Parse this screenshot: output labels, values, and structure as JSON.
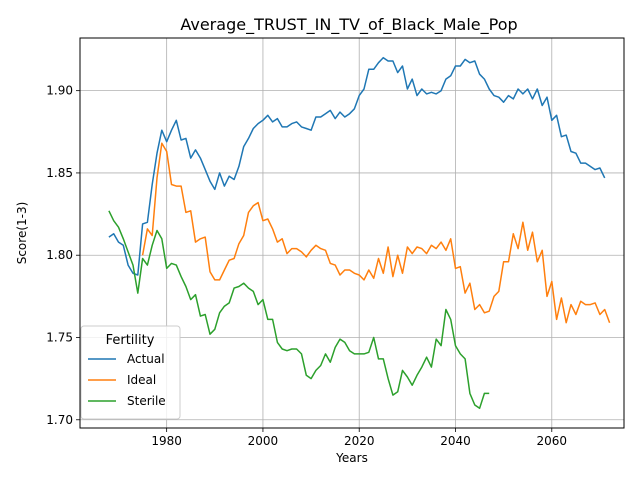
{
  "chart_data": {
    "type": "line",
    "title": "Average_TRUST_IN_TV_of_Black_Male_Pop",
    "xlabel": "Years",
    "ylabel": "Score(1-3)",
    "xlim": [
      1962,
      2075
    ],
    "ylim": [
      1.695,
      1.932
    ],
    "xticks": [
      1980,
      2000,
      2020,
      2040,
      2060
    ],
    "yticks": [
      1.7,
      1.75,
      1.8,
      1.85,
      1.9
    ],
    "grid": true,
    "legend": {
      "title": "Fertility",
      "placement": "lower-left"
    },
    "series": [
      {
        "name": "Actual",
        "color": "#1f77b4",
        "points": [
          [
            1968,
            1.811
          ],
          [
            1969,
            1.813
          ],
          [
            1970,
            1.808
          ],
          [
            1971,
            1.806
          ],
          [
            1972,
            1.794
          ],
          [
            1973,
            1.789
          ],
          [
            1974,
            1.788
          ],
          [
            1975,
            1.819
          ],
          [
            1976,
            1.82
          ],
          [
            1977,
            1.843
          ],
          [
            1978,
            1.862
          ],
          [
            1979,
            1.876
          ],
          [
            1980,
            1.869
          ],
          [
            1981,
            1.876
          ],
          [
            1982,
            1.882
          ],
          [
            1983,
            1.87
          ],
          [
            1984,
            1.871
          ],
          [
            1985,
            1.859
          ],
          [
            1986,
            1.864
          ],
          [
            1987,
            1.859
          ],
          [
            1988,
            1.852
          ],
          [
            1989,
            1.845
          ],
          [
            1990,
            1.84
          ],
          [
            1991,
            1.85
          ],
          [
            1992,
            1.842
          ],
          [
            1993,
            1.848
          ],
          [
            1994,
            1.846
          ],
          [
            1995,
            1.854
          ],
          [
            1996,
            1.866
          ],
          [
            1997,
            1.871
          ],
          [
            1998,
            1.877
          ],
          [
            1999,
            1.88
          ],
          [
            2000,
            1.882
          ],
          [
            2001,
            1.885
          ],
          [
            2002,
            1.881
          ],
          [
            2003,
            1.883
          ],
          [
            2004,
            1.878
          ],
          [
            2005,
            1.878
          ],
          [
            2006,
            1.88
          ],
          [
            2007,
            1.881
          ],
          [
            2008,
            1.878
          ],
          [
            2009,
            1.877
          ],
          [
            2010,
            1.876
          ],
          [
            2011,
            1.884
          ],
          [
            2012,
            1.884
          ],
          [
            2013,
            1.886
          ],
          [
            2014,
            1.888
          ],
          [
            2015,
            1.883
          ],
          [
            2016,
            1.887
          ],
          [
            2017,
            1.884
          ],
          [
            2018,
            1.886
          ],
          [
            2019,
            1.889
          ],
          [
            2020,
            1.897
          ],
          [
            2021,
            1.901
          ],
          [
            2022,
            1.913
          ],
          [
            2023,
            1.913
          ],
          [
            2024,
            1.917
          ],
          [
            2025,
            1.92
          ],
          [
            2026,
            1.918
          ],
          [
            2027,
            1.918
          ],
          [
            2028,
            1.911
          ],
          [
            2029,
            1.915
          ],
          [
            2030,
            1.901
          ],
          [
            2031,
            1.907
          ],
          [
            2032,
            1.897
          ],
          [
            2033,
            1.901
          ],
          [
            2034,
            1.898
          ],
          [
            2035,
            1.899
          ],
          [
            2036,
            1.898
          ],
          [
            2037,
            1.9
          ],
          [
            2038,
            1.907
          ],
          [
            2039,
            1.909
          ],
          [
            2040,
            1.915
          ],
          [
            2041,
            1.915
          ],
          [
            2042,
            1.919
          ],
          [
            2043,
            1.917
          ],
          [
            2044,
            1.918
          ],
          [
            2045,
            1.91
          ],
          [
            2046,
            1.907
          ],
          [
            2047,
            1.901
          ],
          [
            2048,
            1.897
          ],
          [
            2049,
            1.896
          ],
          [
            2050,
            1.893
          ],
          [
            2051,
            1.897
          ],
          [
            2052,
            1.895
          ],
          [
            2053,
            1.901
          ],
          [
            2054,
            1.898
          ],
          [
            2055,
            1.901
          ],
          [
            2056,
            1.895
          ],
          [
            2057,
            1.901
          ],
          [
            2058,
            1.891
          ],
          [
            2059,
            1.896
          ],
          [
            2060,
            1.882
          ],
          [
            2061,
            1.885
          ],
          [
            2062,
            1.872
          ],
          [
            2063,
            1.873
          ],
          [
            2064,
            1.863
          ],
          [
            2065,
            1.862
          ],
          [
            2066,
            1.856
          ],
          [
            2067,
            1.856
          ],
          [
            2068,
            1.854
          ],
          [
            2069,
            1.852
          ],
          [
            2070,
            1.853
          ],
          [
            2071,
            1.847
          ]
        ]
      },
      {
        "name": "Ideal",
        "color": "#ff7f0e",
        "points": [
          [
            1975,
            1.8
          ],
          [
            1976,
            1.816
          ],
          [
            1977,
            1.812
          ],
          [
            1978,
            1.847
          ],
          [
            1979,
            1.868
          ],
          [
            1980,
            1.863
          ],
          [
            1981,
            1.843
          ],
          [
            1982,
            1.842
          ],
          [
            1983,
            1.842
          ],
          [
            1984,
            1.826
          ],
          [
            1985,
            1.827
          ],
          [
            1986,
            1.808
          ],
          [
            1987,
            1.81
          ],
          [
            1988,
            1.811
          ],
          [
            1989,
            1.79
          ],
          [
            1990,
            1.785
          ],
          [
            1991,
            1.785
          ],
          [
            1992,
            1.791
          ],
          [
            1993,
            1.797
          ],
          [
            1994,
            1.798
          ],
          [
            1995,
            1.807
          ],
          [
            1996,
            1.812
          ],
          [
            1997,
            1.826
          ],
          [
            1998,
            1.83
          ],
          [
            1999,
            1.832
          ],
          [
            2000,
            1.821
          ],
          [
            2001,
            1.822
          ],
          [
            2002,
            1.816
          ],
          [
            2003,
            1.808
          ],
          [
            2004,
            1.81
          ],
          [
            2005,
            1.801
          ],
          [
            2006,
            1.804
          ],
          [
            2007,
            1.804
          ],
          [
            2008,
            1.802
          ],
          [
            2009,
            1.799
          ],
          [
            2010,
            1.803
          ],
          [
            2011,
            1.806
          ],
          [
            2012,
            1.804
          ],
          [
            2013,
            1.803
          ],
          [
            2014,
            1.795
          ],
          [
            2015,
            1.794
          ],
          [
            2016,
            1.788
          ],
          [
            2017,
            1.791
          ],
          [
            2018,
            1.791
          ],
          [
            2019,
            1.789
          ],
          [
            2020,
            1.788
          ],
          [
            2021,
            1.785
          ],
          [
            2022,
            1.791
          ],
          [
            2023,
            1.786
          ],
          [
            2024,
            1.798
          ],
          [
            2025,
            1.789
          ],
          [
            2026,
            1.805
          ],
          [
            2027,
            1.787
          ],
          [
            2028,
            1.8
          ],
          [
            2029,
            1.789
          ],
          [
            2030,
            1.805
          ],
          [
            2031,
            1.801
          ],
          [
            2032,
            1.805
          ],
          [
            2033,
            1.804
          ],
          [
            2034,
            1.801
          ],
          [
            2035,
            1.806
          ],
          [
            2036,
            1.804
          ],
          [
            2037,
            1.808
          ],
          [
            2038,
            1.803
          ],
          [
            2039,
            1.81
          ],
          [
            2040,
            1.792
          ],
          [
            2041,
            1.793
          ],
          [
            2042,
            1.777
          ],
          [
            2043,
            1.783
          ],
          [
            2044,
            1.767
          ],
          [
            2045,
            1.77
          ],
          [
            2046,
            1.765
          ],
          [
            2047,
            1.766
          ],
          [
            2048,
            1.775
          ],
          [
            2049,
            1.778
          ],
          [
            2050,
            1.796
          ],
          [
            2051,
            1.796
          ],
          [
            2052,
            1.813
          ],
          [
            2053,
            1.804
          ],
          [
            2054,
            1.82
          ],
          [
            2055,
            1.803
          ],
          [
            2056,
            1.814
          ],
          [
            2057,
            1.796
          ],
          [
            2058,
            1.803
          ],
          [
            2059,
            1.775
          ],
          [
            2060,
            1.784
          ],
          [
            2061,
            1.761
          ],
          [
            2062,
            1.774
          ],
          [
            2063,
            1.759
          ],
          [
            2064,
            1.77
          ],
          [
            2065,
            1.764
          ],
          [
            2066,
            1.772
          ],
          [
            2067,
            1.77
          ],
          [
            2068,
            1.77
          ],
          [
            2069,
            1.771
          ],
          [
            2070,
            1.764
          ],
          [
            2071,
            1.767
          ],
          [
            2072,
            1.759
          ]
        ]
      },
      {
        "name": "Sterile",
        "color": "#2ca02c",
        "points": [
          [
            1968,
            1.827
          ],
          [
            1969,
            1.821
          ],
          [
            1970,
            1.817
          ],
          [
            1971,
            1.81
          ],
          [
            1972,
            1.802
          ],
          [
            1973,
            1.794
          ],
          [
            1974,
            1.777
          ],
          [
            1975,
            1.798
          ],
          [
            1976,
            1.794
          ],
          [
            1977,
            1.806
          ],
          [
            1978,
            1.815
          ],
          [
            1979,
            1.81
          ],
          [
            1980,
            1.792
          ],
          [
            1981,
            1.795
          ],
          [
            1982,
            1.794
          ],
          [
            1983,
            1.787
          ],
          [
            1984,
            1.781
          ],
          [
            1985,
            1.773
          ],
          [
            1986,
            1.776
          ],
          [
            1987,
            1.763
          ],
          [
            1988,
            1.764
          ],
          [
            1989,
            1.752
          ],
          [
            1990,
            1.755
          ],
          [
            1991,
            1.765
          ],
          [
            1992,
            1.769
          ],
          [
            1993,
            1.771
          ],
          [
            1994,
            1.78
          ],
          [
            1995,
            1.781
          ],
          [
            1996,
            1.783
          ],
          [
            1997,
            1.78
          ],
          [
            1998,
            1.778
          ],
          [
            1999,
            1.77
          ],
          [
            2000,
            1.773
          ],
          [
            2001,
            1.761
          ],
          [
            2002,
            1.761
          ],
          [
            2003,
            1.747
          ],
          [
            2004,
            1.743
          ],
          [
            2005,
            1.742
          ],
          [
            2006,
            1.743
          ],
          [
            2007,
            1.743
          ],
          [
            2008,
            1.74
          ],
          [
            2009,
            1.727
          ],
          [
            2010,
            1.725
          ],
          [
            2011,
            1.73
          ],
          [
            2012,
            1.733
          ],
          [
            2013,
            1.74
          ],
          [
            2014,
            1.735
          ],
          [
            2015,
            1.744
          ],
          [
            2016,
            1.749
          ],
          [
            2017,
            1.747
          ],
          [
            2018,
            1.742
          ],
          [
            2019,
            1.74
          ],
          [
            2020,
            1.74
          ],
          [
            2021,
            1.74
          ],
          [
            2022,
            1.741
          ],
          [
            2023,
            1.75
          ],
          [
            2024,
            1.737
          ],
          [
            2025,
            1.737
          ],
          [
            2026,
            1.725
          ],
          [
            2027,
            1.715
          ],
          [
            2028,
            1.717
          ],
          [
            2029,
            1.73
          ],
          [
            2030,
            1.726
          ],
          [
            2031,
            1.721
          ],
          [
            2032,
            1.727
          ],
          [
            2033,
            1.732
          ],
          [
            2034,
            1.738
          ],
          [
            2035,
            1.732
          ],
          [
            2036,
            1.749
          ],
          [
            2037,
            1.745
          ],
          [
            2038,
            1.767
          ],
          [
            2039,
            1.761
          ],
          [
            2040,
            1.745
          ],
          [
            2041,
            1.74
          ],
          [
            2042,
            1.737
          ],
          [
            2043,
            1.716
          ],
          [
            2044,
            1.709
          ],
          [
            2045,
            1.707
          ],
          [
            2046,
            1.716
          ],
          [
            2047,
            1.716
          ]
        ]
      }
    ]
  }
}
